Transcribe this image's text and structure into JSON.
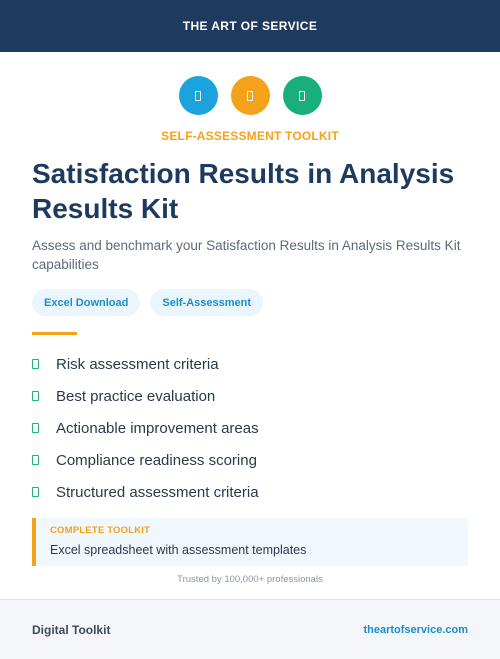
{
  "header": {
    "title": "THE ART OF SERVICE"
  },
  "icons": [
    {
      "name": "spreadsheet-icon",
      "color": "#1aa3dd"
    },
    {
      "name": "clipboard-icon",
      "color": "#f5a21b"
    },
    {
      "name": "checklist-icon",
      "color": "#1aae7d"
    }
  ],
  "eyebrow": {
    "text": "SELF-ASSESSMENT TOOLKIT",
    "color": "#f5a21b"
  },
  "title": "Satisfaction Results in Analysis Results Kit",
  "subtitle": "Assess and benchmark your Satisfaction Results in Analysis Results Kit capabilities",
  "tags": [
    "Excel Download",
    "Self-Assessment"
  ],
  "accent_color": "#f5a21b",
  "features": [
    "Risk assessment criteria",
    "Best practice evaluation",
    "Actionable improvement areas",
    "Compliance readiness scoring",
    "Structured assessment criteria"
  ],
  "callout": {
    "title": "COMPLETE TOOLKIT",
    "text": "Excel spreadsheet with assessment templates"
  },
  "trust_line": "Trusted by 100,000+ professionals",
  "footer": {
    "left": "Digital Toolkit",
    "right": "theartofservice.com",
    "link_color": "#1a8fc9"
  }
}
